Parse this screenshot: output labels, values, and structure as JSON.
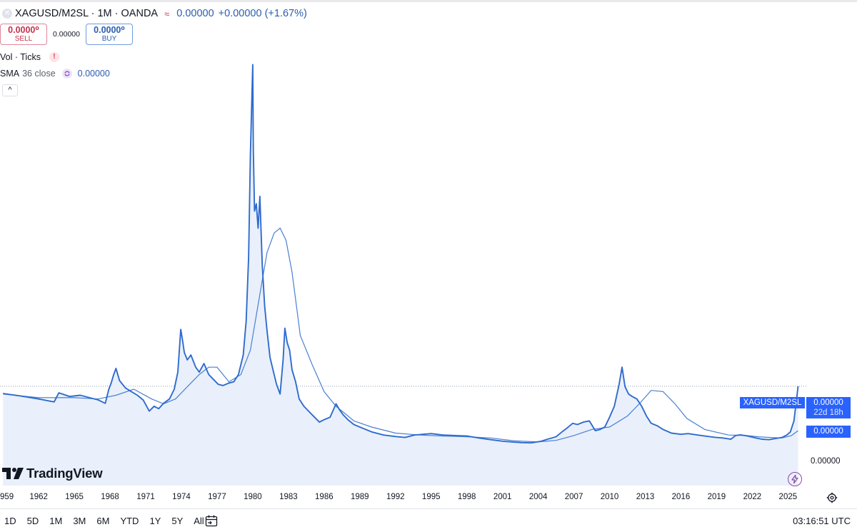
{
  "header": {
    "symbol_title": "XAGUSD/M2SL · 1M · OANDA",
    "wave_symbol": "≈",
    "close_value": "0.00000",
    "change": "+0.00000 (+1.67%)"
  },
  "trade": {
    "sell_price": "0.0000⁰",
    "sell_label": "SELL",
    "spread": "0.00000",
    "buy_price": "0.0000⁰",
    "buy_label": "BUY"
  },
  "indicators": {
    "vol_label": "Vol · Ticks",
    "vol_warning": "!",
    "sma_name": "SMA",
    "sma_params": "36 close",
    "sma_value": "0.00000"
  },
  "collapse_symbol": "^",
  "logo": {
    "text": "TradingView"
  },
  "price_badges": {
    "symbol": "XAGUSD/M2SL",
    "last_price": "0.00000",
    "countdown": "22d 18h",
    "sma_price": "0.00000",
    "axis_label": "0.00000"
  },
  "bottom_bar": {
    "ranges": [
      "1D",
      "5D",
      "1M",
      "3M",
      "6M",
      "YTD",
      "1Y",
      "5Y",
      "All"
    ],
    "clock": "03:16:51 UTC"
  },
  "colors": {
    "series": "#2f6bce",
    "sma": "#4a7fd1",
    "area_fill": "#e9f0fb",
    "badge": "#2962ff"
  },
  "icons": [
    "close-icon",
    "warning-icon",
    "cycle-icon",
    "chevron-up-icon",
    "tradingview-logo-icon",
    "lightning-icon",
    "gear-icon",
    "calendar-icon"
  ],
  "chart_data": {
    "type": "area",
    "title": "XAGUSD/M2SL · 1M · OANDA",
    "xlabel": "",
    "ylabel": "",
    "x_ticks": [
      "959",
      "1962",
      "1965",
      "1968",
      "1971",
      "1974",
      "1977",
      "1980",
      "1983",
      "1986",
      "1989",
      "1992",
      "1995",
      "1998",
      "2001",
      "2004",
      "2007",
      "2010",
      "2013",
      "2016",
      "2019",
      "2022",
      "2025"
    ],
    "xlim": [
      1958.75,
      2026.6
    ],
    "ylim": [
      0,
      1.63
    ],
    "y_scale_note": "price axis values are displayed as 0.00000; series values are relative to the last close (last = 0.252)",
    "series": [
      {
        "name": "XAGUSD/M2SL",
        "x": [
          1959.0,
          1960.5,
          1962.0,
          1963.3,
          1963.7,
          1964.6,
          1965.5,
          1967.0,
          1967.6,
          1967.9,
          1968.1,
          1968.3,
          1968.5,
          1968.8,
          1969.3,
          1969.8,
          1970.3,
          1970.8,
          1971.3,
          1971.7,
          1972.1,
          1972.5,
          1973.0,
          1973.4,
          1973.7,
          1973.95,
          1974.1,
          1974.25,
          1974.5,
          1974.8,
          1975.2,
          1975.5,
          1975.9,
          1976.3,
          1976.7,
          1977.1,
          1977.5,
          1978.0,
          1978.4,
          1978.8,
          1979.2,
          1979.45,
          1979.65,
          1979.8,
          1979.9,
          1980.0,
          1980.05,
          1980.15,
          1980.3,
          1980.45,
          1980.6,
          1980.8,
          1981.0,
          1981.2,
          1981.45,
          1981.7,
          1982.0,
          1982.3,
          1982.55,
          1982.7,
          1982.9,
          1983.1,
          1983.3,
          1983.6,
          1983.9,
          1984.3,
          1984.8,
          1985.2,
          1985.6,
          1986.0,
          1986.5,
          1987.0,
          1987.3,
          1987.6,
          1988.0,
          1988.5,
          1989.0,
          1990.0,
          1991.0,
          1992.0,
          1992.8,
          1993.6,
          1994.3,
          1995.0,
          1996.0,
          1997.0,
          1998.0,
          1999.0,
          2000.0,
          2001.0,
          2001.9,
          2002.6,
          2003.4,
          2004.2,
          2004.8,
          2005.5,
          2006.0,
          2006.4,
          2006.9,
          2007.3,
          2007.8,
          2008.3,
          2008.8,
          2009.2,
          2009.6,
          2010.0,
          2010.4,
          2010.8,
          2011.05,
          2011.3,
          2011.6,
          2011.9,
          2012.3,
          2012.7,
          2013.1,
          2013.5,
          2014.0,
          2014.5,
          2015.2,
          2016.0,
          2016.6,
          2017.3,
          2018.0,
          2018.8,
          2019.5,
          2020.2,
          2020.6,
          2021.0,
          2021.6,
          2022.3,
          2022.8,
          2023.4,
          2024.0,
          2024.5,
          2024.9,
          2025.2,
          2025.5,
          2025.7,
          2025.85
        ],
        "values": [
          0.222,
          0.212,
          0.2,
          0.188,
          0.225,
          0.21,
          0.215,
          0.196,
          0.182,
          0.24,
          0.265,
          0.298,
          0.325,
          0.275,
          0.245,
          0.23,
          0.215,
          0.195,
          0.15,
          0.17,
          0.16,
          0.182,
          0.2,
          0.24,
          0.31,
          0.485,
          0.44,
          0.39,
          0.36,
          0.38,
          0.33,
          0.31,
          0.345,
          0.3,
          0.28,
          0.26,
          0.255,
          0.265,
          0.27,
          0.3,
          0.38,
          0.52,
          0.78,
          1.2,
          1.38,
          1.57,
          1.22,
          0.97,
          1.0,
          0.9,
          1.03,
          0.75,
          0.58,
          0.48,
          0.37,
          0.32,
          0.26,
          0.22,
          0.36,
          0.49,
          0.43,
          0.4,
          0.32,
          0.27,
          0.2,
          0.17,
          0.145,
          0.125,
          0.105,
          0.115,
          0.125,
          0.18,
          0.155,
          0.135,
          0.115,
          0.095,
          0.085,
          0.065,
          0.052,
          0.046,
          0.042,
          0.052,
          0.055,
          0.058,
          0.052,
          0.05,
          0.048,
          0.04,
          0.033,
          0.027,
          0.023,
          0.021,
          0.02,
          0.026,
          0.035,
          0.045,
          0.065,
          0.08,
          0.1,
          0.095,
          0.105,
          0.11,
          0.07,
          0.075,
          0.085,
          0.125,
          0.17,
          0.26,
          0.33,
          0.25,
          0.22,
          0.21,
          0.2,
          0.17,
          0.13,
          0.1,
          0.09,
          0.075,
          0.06,
          0.055,
          0.058,
          0.053,
          0.048,
          0.043,
          0.04,
          0.035,
          0.05,
          0.053,
          0.048,
          0.04,
          0.035,
          0.033,
          0.038,
          0.042,
          0.052,
          0.065,
          0.11,
          0.19,
          0.252
        ]
      },
      {
        "name": "SMA 36 close",
        "x": [
          1959.0,
          1962.0,
          1965.0,
          1967.0,
          1968.5,
          1970.0,
          1971.5,
          1972.5,
          1973.5,
          1974.5,
          1975.5,
          1976.3,
          1977.0,
          1978.0,
          1979.0,
          1979.8,
          1980.5,
          1981.2,
          1981.8,
          1982.3,
          1982.8,
          1983.3,
          1984.0,
          1985.0,
          1986.0,
          1987.0,
          1988.5,
          1990.0,
          1992.0,
          1994.0,
          1996.0,
          1998.0,
          2000.0,
          2002.0,
          2004.0,
          2005.5,
          2007.0,
          2008.5,
          2010.0,
          2011.5,
          2012.5,
          2013.5,
          2014.5,
          2015.5,
          2016.5,
          2018.0,
          2020.0,
          2021.5,
          2022.5,
          2023.5,
          2024.5,
          2025.3,
          2025.85
        ],
        "values": [
          0.22,
          0.205,
          0.205,
          0.2,
          0.215,
          0.24,
          0.2,
          0.18,
          0.2,
          0.25,
          0.3,
          0.33,
          0.33,
          0.27,
          0.3,
          0.4,
          0.6,
          0.8,
          0.88,
          0.9,
          0.85,
          0.72,
          0.46,
          0.34,
          0.23,
          0.17,
          0.11,
          0.085,
          0.06,
          0.052,
          0.048,
          0.045,
          0.04,
          0.028,
          0.024,
          0.03,
          0.05,
          0.075,
          0.085,
          0.13,
          0.18,
          0.235,
          0.23,
          0.18,
          0.12,
          0.075,
          0.052,
          0.05,
          0.045,
          0.042,
          0.04,
          0.05,
          0.07
        ]
      }
    ],
    "last_price_line": 0.252,
    "legend": "top-left",
    "grid": false
  }
}
